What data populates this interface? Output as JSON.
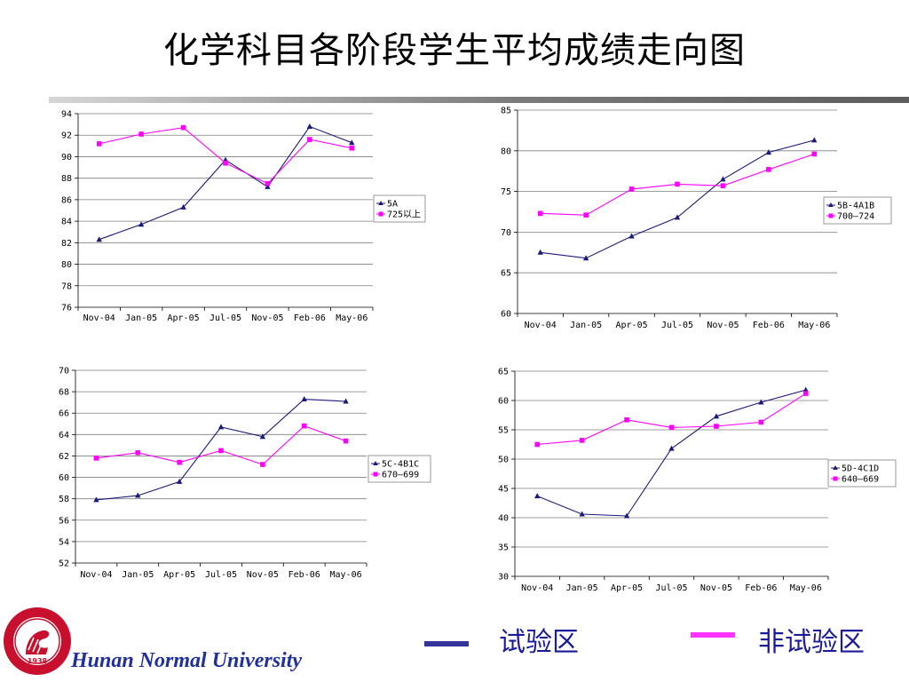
{
  "title": "化学科目各阶段学生平均成绩走向图",
  "university": "Hunan Normal University",
  "logo_year": "1938",
  "logo_name": "湖南师范大学",
  "logo_name_en": "Hunan Normal University",
  "colors": {
    "experimental": "#1a1a7a",
    "nonexperimental": "#ff00ff",
    "key_experimental": "#333399",
    "key_nonexperimental": "#ff33ff"
  },
  "key": {
    "experimental_label": "试验区",
    "nonexperimental_label": "非试验区"
  },
  "chart_data": [
    {
      "type": "line",
      "categories": [
        "Nov-04",
        "Jan-05",
        "Apr-05",
        "Jul-05",
        "Nov-05",
        "Feb-06",
        "May-06"
      ],
      "ylim": [
        76,
        94
      ],
      "ystep": 2,
      "legend_position": "right",
      "series": [
        {
          "name": "5A",
          "marker": "triangle",
          "values": [
            82.3,
            83.7,
            85.3,
            89.7,
            87.2,
            92.8,
            91.3
          ]
        },
        {
          "name": "725以上",
          "marker": "square",
          "values": [
            91.2,
            92.1,
            92.7,
            89.4,
            87.5,
            91.6,
            90.8
          ]
        }
      ]
    },
    {
      "type": "line",
      "categories": [
        "Nov-04",
        "Jan-05",
        "Apr-05",
        "Jul-05",
        "Nov-05",
        "Feb-06",
        "May-06"
      ],
      "ylim": [
        60,
        85
      ],
      "ystep": 5,
      "legend_position": "right",
      "series": [
        {
          "name": "5B-4A1B",
          "marker": "triangle",
          "values": [
            67.5,
            66.8,
            69.5,
            71.8,
            76.5,
            79.8,
            81.3
          ]
        },
        {
          "name": "700—724",
          "marker": "square",
          "values": [
            72.3,
            72.1,
            75.3,
            75.9,
            75.7,
            77.7,
            79.6
          ]
        }
      ]
    },
    {
      "type": "line",
      "categories": [
        "Nov-04",
        "Jan-05",
        "Apr-05",
        "Jul-05",
        "Nov-05",
        "Feb-06",
        "May-06"
      ],
      "ylim": [
        52,
        70
      ],
      "ystep": 2,
      "legend_position": "right",
      "series": [
        {
          "name": "5C-4B1C",
          "marker": "triangle",
          "values": [
            57.9,
            58.3,
            59.6,
            64.7,
            63.8,
            67.3,
            67.1
          ]
        },
        {
          "name": "670—699",
          "marker": "square",
          "values": [
            61.8,
            62.3,
            61.4,
            62.5,
            61.2,
            64.8,
            63.4
          ]
        }
      ]
    },
    {
      "type": "line",
      "categories": [
        "Nov-04",
        "Jan-05",
        "Apr-05",
        "Jul-05",
        "Nov-05",
        "Feb-06",
        "May-06"
      ],
      "ylim": [
        30,
        65
      ],
      "ystep": 5,
      "legend_position": "right",
      "series": [
        {
          "name": "5D-4C1D",
          "marker": "triangle",
          "values": [
            43.7,
            40.6,
            40.3,
            51.8,
            57.3,
            59.7,
            61.8
          ]
        },
        {
          "name": "640—669",
          "marker": "square",
          "values": [
            52.5,
            53.2,
            56.7,
            55.4,
            55.6,
            56.3,
            61.2
          ]
        }
      ]
    }
  ]
}
